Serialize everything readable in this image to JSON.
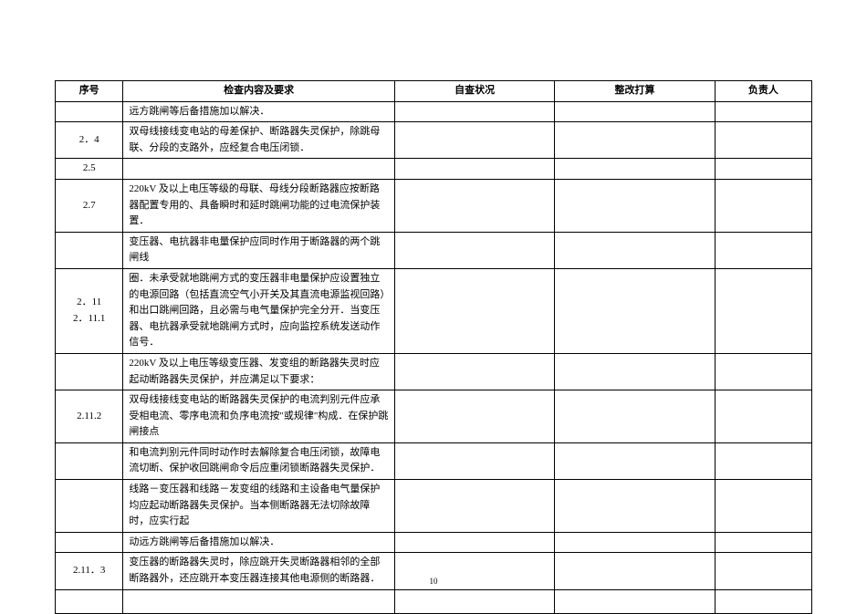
{
  "header": {
    "seq": "序号",
    "content": "检查内容及要求",
    "check": "自查状况",
    "fix": "整改打算",
    "resp": "负责人"
  },
  "rows": [
    {
      "seq": "",
      "content": "远方跳闸等后备措施加以解决．"
    },
    {
      "seq": "2．4",
      "content": "双母线接线变电站的母差保护、断路器失灵保护，除跳母联、分段的支路外，应经复合电压闭锁．"
    },
    {
      "seq": "2.5",
      "content": ""
    },
    {
      "seq": "2.7",
      "content": "220kV 及以上电压等级的母联、母线分段断路器应按断路器配置专用的、具备瞬时和延时跳闸功能的过电流保护装置．"
    },
    {
      "seq": "",
      "content": "变压器、电抗器非电量保护应同时作用于断路器的两个跳闸线"
    },
    {
      "seq": "2．11\n2．11.1",
      "content": "圈．未承受就地跳闸方式的变压器非电量保护应设置独立的电源回路（包括直流空气小开关及其直流电源监视回路）和出口跳闸回路，且必需与电气量保护完全分开．当变压器、电抗器承受就地跳闸方式时，应向监控系统发送动作信号．"
    },
    {
      "seq": "",
      "content": "220kV 及以上电压等级变压器、发变组的断路器失灵时应起动断路器失灵保护，并应满足以下要求："
    },
    {
      "seq": "2.11.2",
      "content": "双母线接线变电站的断路器失灵保护的电流判别元件应承受相电流、零序电流和负序电流按\"或规律\"构成．在保护跳闸接点"
    },
    {
      "seq": "",
      "content": "和电流判别元件同时动作时去解除复合电压闭锁，故障电流切断、保护收回跳闸命令后应重闭锁断路器失灵保护．"
    },
    {
      "seq": "",
      "content": "线路－变压器和线路－发变组的线路和主设备电气量保护均应起动断路器失灵保护。当本侧断路器无法切除故障时，应实行起"
    },
    {
      "seq": "",
      "content": "动远方跳闸等后备措施加以解决．"
    },
    {
      "seq": "2.11．3",
      "content": "变压器的断路器失灵时，除应跳开失灵断路器相邻的全部断路器外，还应跳开本变压器连接其他电源侧的断路器．"
    },
    {
      "seq": "",
      "content": ""
    }
  ],
  "pageNumber": "10"
}
